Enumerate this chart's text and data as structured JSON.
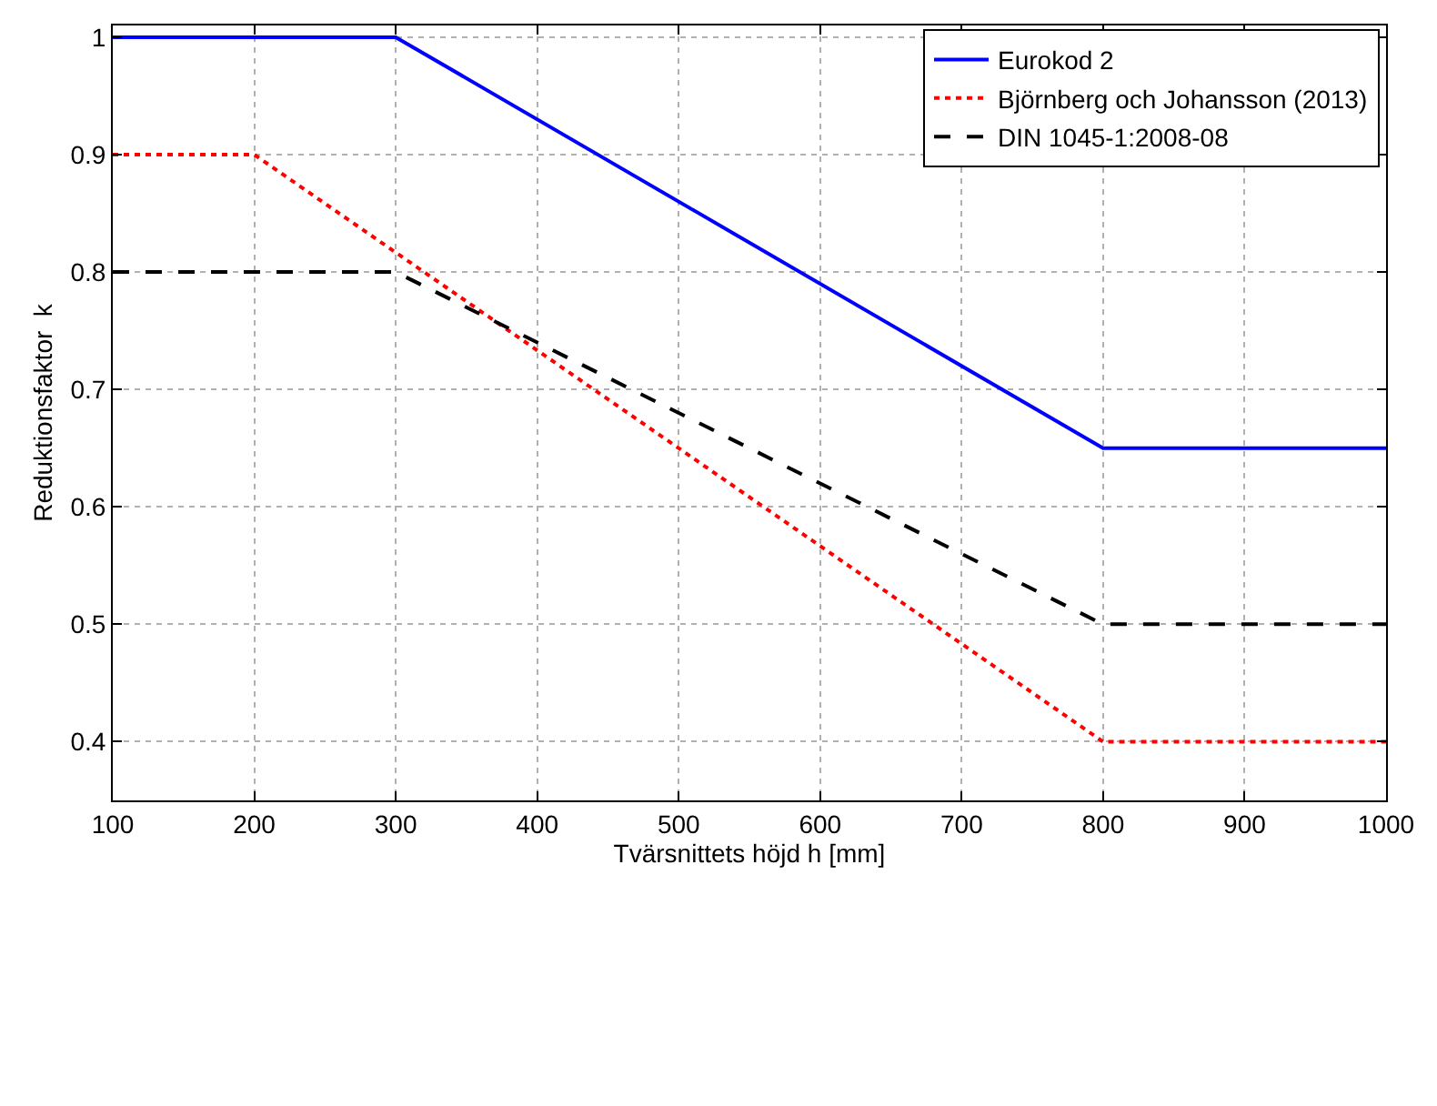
{
  "chart_data": {
    "type": "line",
    "xlabel": "Tvärsnittets höjd h [mm]",
    "ylabel": "Reduktionsfaktor  k",
    "xlim": [
      100,
      1000
    ],
    "xticks": [
      100,
      200,
      300,
      400,
      500,
      600,
      700,
      800,
      900,
      1000
    ],
    "ylim": [
      0.35,
      1.01
    ],
    "yticks": [
      0.4,
      0.5,
      0.6,
      0.7,
      0.8,
      0.9,
      1
    ],
    "grid": true,
    "legend": "top right",
    "marker": "none",
    "series": [
      {
        "name": "Eurokod 2",
        "color": "#0000ff",
        "line_style": "solid",
        "x": [
          100,
          300,
          800,
          1000
        ],
        "values": [
          1,
          1,
          0.65,
          0.65
        ]
      },
      {
        "name": "Björnberg och Johansson (2013)",
        "color": "#ff0000",
        "line_style": "dotted",
        "x": [
          100,
          200,
          800,
          1000
        ],
        "values": [
          0.9,
          0.9,
          0.4,
          0.4
        ]
      },
      {
        "name": "DIN 1045-1:2008-08",
        "color": "#000000",
        "line_style": "dashed",
        "x": [
          100,
          300,
          800,
          1000
        ],
        "values": [
          0.8,
          0.8,
          0.5,
          0.5
        ]
      }
    ]
  }
}
